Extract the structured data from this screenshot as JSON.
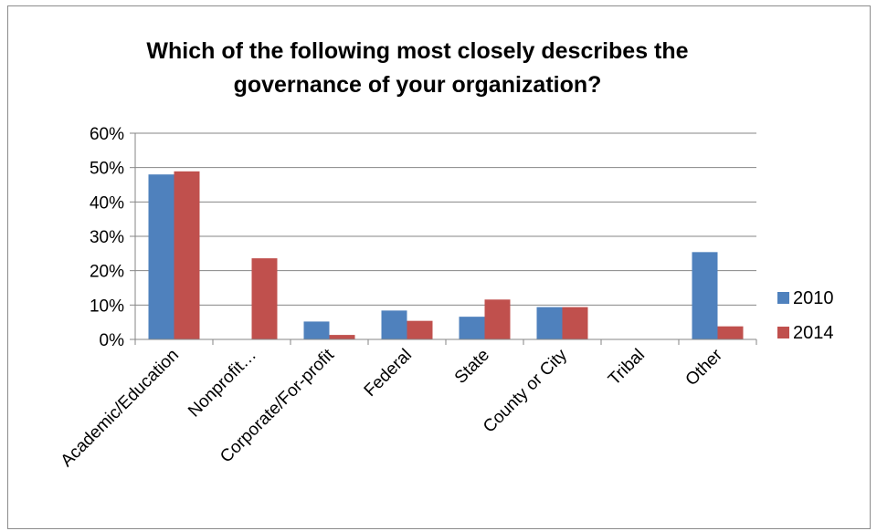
{
  "chart_data": {
    "type": "bar",
    "title": "Which of the following most closely describes the governance of your organization?",
    "title_lines": [
      "Which of the following most closely describes the",
      "governance of your organization?"
    ],
    "xlabel": "",
    "ylabel": "",
    "categories": [
      "Academic/Education",
      "Nonprofit…",
      "Corporate/For-profit",
      "Federal",
      "State",
      "County or City",
      "Tribal",
      "Other"
    ],
    "series": [
      {
        "name": "2010",
        "color": "#4f81bd",
        "values": [
          48,
          0,
          5.2,
          8.4,
          6.6,
          9.4,
          0,
          25.4
        ]
      },
      {
        "name": "2014",
        "color": "#c0504d",
        "values": [
          48.9,
          23.6,
          1.3,
          5.4,
          11.6,
          9.4,
          0,
          3.8
        ]
      }
    ],
    "ylim": [
      0,
      60
    ],
    "yticks": [
      0,
      10,
      20,
      30,
      40,
      50,
      60
    ],
    "ytick_labels": [
      "0%",
      "10%",
      "20%",
      "30%",
      "40%",
      "50%",
      "60%"
    ],
    "grid": true,
    "legend_position": "right"
  }
}
